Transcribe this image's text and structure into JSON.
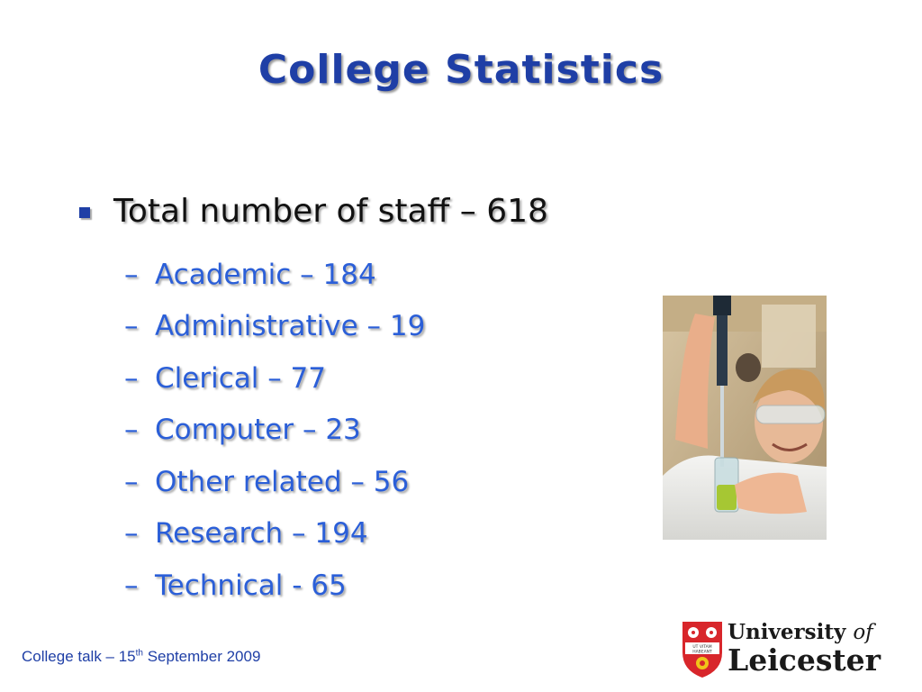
{
  "slide": {
    "title": "College Statistics",
    "main_bullet": "Total number of staff – 618",
    "sub_items": [
      "Academic – 184",
      "Administrative – 19",
      "Clerical – 77",
      "Computer – 23",
      "Other related – 56",
      "Research – 194",
      "Technical - 65"
    ],
    "sub_bullet_glyph": "–"
  },
  "footer": {
    "prefix": "College talk – 15",
    "superscript": "th",
    "suffix": " September 2009"
  },
  "logo": {
    "line1_a": "University",
    "line1_b": "of",
    "line2": "Leicester",
    "shield_motto_a": "UT VITAM",
    "shield_motto_b": "HABEANT"
  },
  "colors": {
    "title": "#1f3fa6",
    "sub_text": "#2b5fd8",
    "shield_red": "#d8262b"
  }
}
